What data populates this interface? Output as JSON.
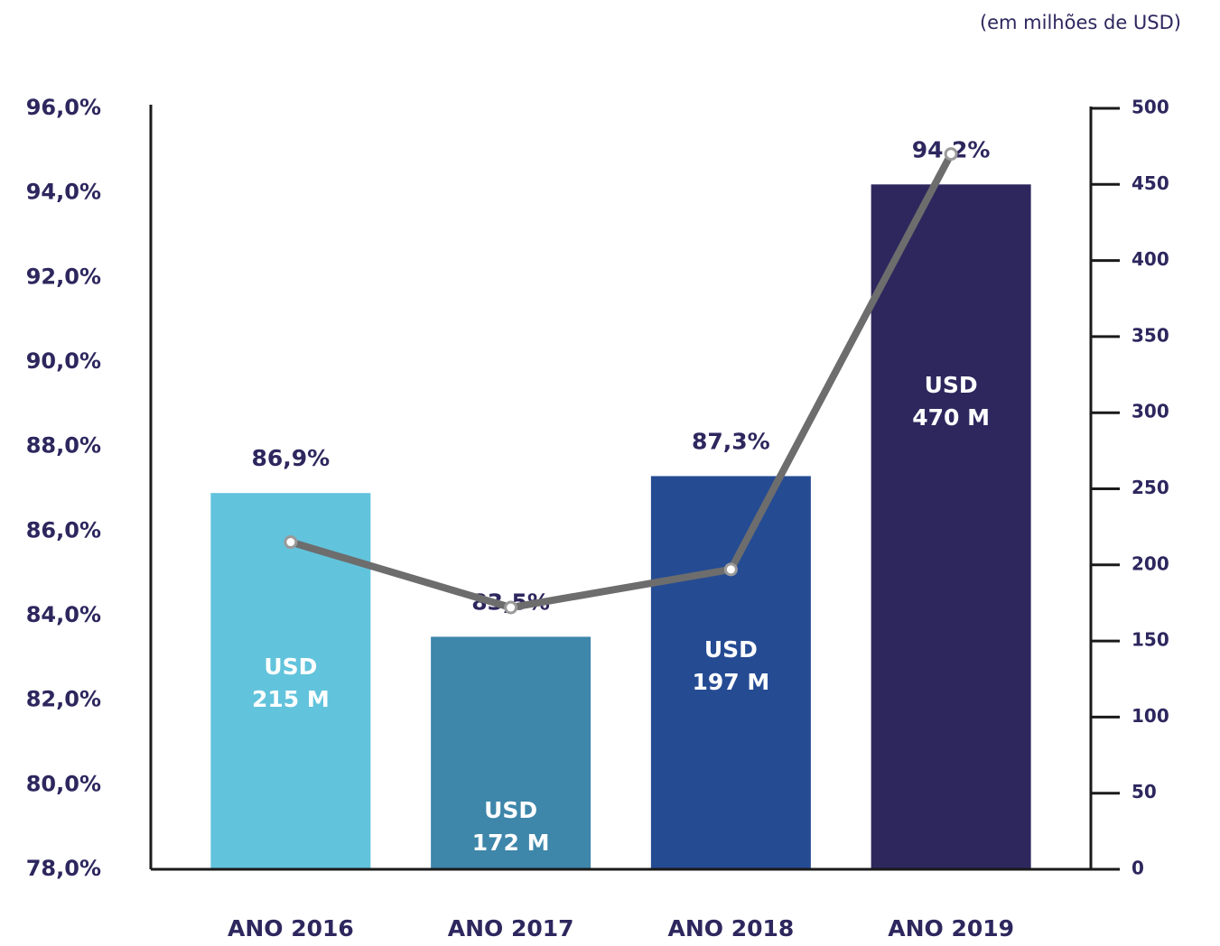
{
  "chart_data": {
    "type": "bar",
    "note": "(em milhões de USD)",
    "categories": [
      "ANO 2016",
      "ANO 2017",
      "ANO 2018",
      "ANO 2019"
    ],
    "series": [
      {
        "type": "bar",
        "colors": [
          "#62c3dc",
          "#3e86aa",
          "#254b93",
          "#2d275e"
        ],
        "values": [
          86.9,
          83.5,
          87.3,
          94.2
        ],
        "value_labels": [
          "86,9%",
          "83,5%",
          "87,3%",
          "94,2%"
        ]
      },
      {
        "type": "line",
        "axis": "y2",
        "color": "#6d6d6d",
        "values": [
          215,
          172,
          197,
          470
        ],
        "value_labels": [
          "USD\n215 M",
          "USD\n172 M",
          "USD\n197 M",
          "USD\n470 M"
        ]
      }
    ],
    "ylim": [
      78,
      96
    ],
    "yticks": [
      {
        "value": 78,
        "label": "78,0%"
      },
      {
        "value": 80,
        "label": "80,0%"
      },
      {
        "value": 82,
        "label": "82,0%"
      },
      {
        "value": 84,
        "label": "84,0%"
      },
      {
        "value": 86,
        "label": "86,0%"
      },
      {
        "value": 88,
        "label": "88,0%"
      },
      {
        "value": 90,
        "label": "90,0%"
      },
      {
        "value": 92,
        "label": "92,0%"
      },
      {
        "value": 94,
        "label": "94,0%"
      },
      {
        "value": 96,
        "label": "96,0%"
      }
    ],
    "y2lim": [
      0,
      500
    ],
    "y2ticks": [
      0,
      50,
      100,
      150,
      200,
      250,
      300,
      350,
      400,
      450,
      500
    ]
  }
}
